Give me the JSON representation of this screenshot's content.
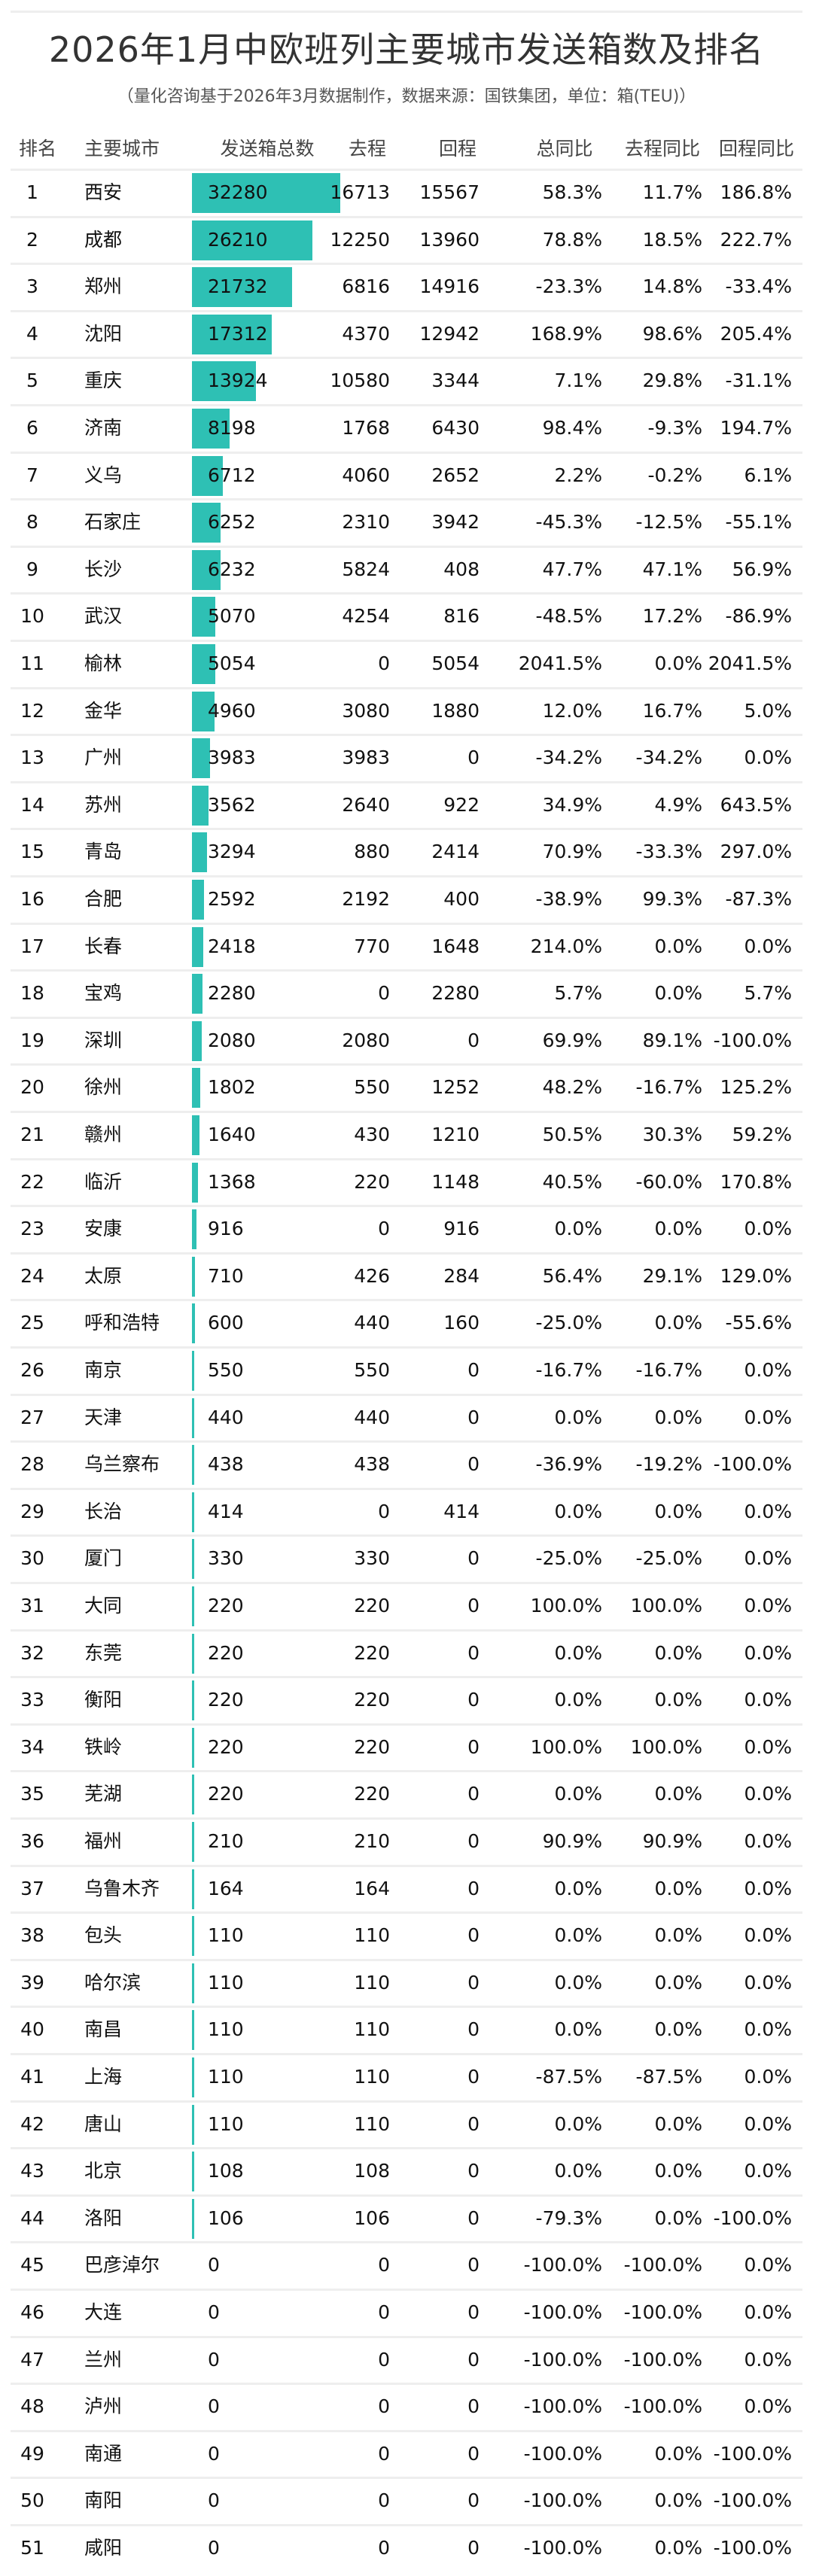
{
  "title": "2026年1月中欧班列主要城市发送箱数及排名",
  "subtitle": "（量化咨询基于2026年3月数据制作，数据来源：国铁集团，单位：箱(TEU)）",
  "chart_data": {
    "type": "table",
    "bar_color": "#2ec0b4",
    "columns": [
      "排名",
      "主要城市",
      "发送箱总数",
      "去程",
      "回程",
      "总同比",
      "去程同比",
      "回程同比"
    ],
    "bar_column": "发送箱总数",
    "rows": [
      [
        "1",
        "西安",
        "32280",
        "16713",
        "15567",
        "58.3%",
        "11.7%",
        "186.8%"
      ],
      [
        "2",
        "成都",
        "26210",
        "12250",
        "13960",
        "78.8%",
        "18.5%",
        "222.7%"
      ],
      [
        "3",
        "郑州",
        "21732",
        "6816",
        "14916",
        "-23.3%",
        "14.8%",
        "-33.4%"
      ],
      [
        "4",
        "沈阳",
        "17312",
        "4370",
        "12942",
        "168.9%",
        "98.6%",
        "205.4%"
      ],
      [
        "5",
        "重庆",
        "13924",
        "10580",
        "3344",
        "7.1%",
        "29.8%",
        "-31.1%"
      ],
      [
        "6",
        "济南",
        "8198",
        "1768",
        "6430",
        "98.4%",
        "-9.3%",
        "194.7%"
      ],
      [
        "7",
        "义乌",
        "6712",
        "4060",
        "2652",
        "2.2%",
        "-0.2%",
        "6.1%"
      ],
      [
        "8",
        "石家庄",
        "6252",
        "2310",
        "3942",
        "-45.3%",
        "-12.5%",
        "-55.1%"
      ],
      [
        "9",
        "长沙",
        "6232",
        "5824",
        "408",
        "47.7%",
        "47.1%",
        "56.9%"
      ],
      [
        "10",
        "武汉",
        "5070",
        "4254",
        "816",
        "-48.5%",
        "17.2%",
        "-86.9%"
      ],
      [
        "11",
        "榆林",
        "5054",
        "0",
        "5054",
        "2041.5%",
        "0.0%",
        "2041.5%"
      ],
      [
        "12",
        "金华",
        "4960",
        "3080",
        "1880",
        "12.0%",
        "16.7%",
        "5.0%"
      ],
      [
        "13",
        "广州",
        "3983",
        "3983",
        "0",
        "-34.2%",
        "-34.2%",
        "0.0%"
      ],
      [
        "14",
        "苏州",
        "3562",
        "2640",
        "922",
        "34.9%",
        "4.9%",
        "643.5%"
      ],
      [
        "15",
        "青岛",
        "3294",
        "880",
        "2414",
        "70.9%",
        "-33.3%",
        "297.0%"
      ],
      [
        "16",
        "合肥",
        "2592",
        "2192",
        "400",
        "-38.9%",
        "99.3%",
        "-87.3%"
      ],
      [
        "17",
        "长春",
        "2418",
        "770",
        "1648",
        "214.0%",
        "0.0%",
        "0.0%"
      ],
      [
        "18",
        "宝鸡",
        "2280",
        "0",
        "2280",
        "5.7%",
        "0.0%",
        "5.7%"
      ],
      [
        "19",
        "深圳",
        "2080",
        "2080",
        "0",
        "69.9%",
        "89.1%",
        "-100.0%"
      ],
      [
        "20",
        "徐州",
        "1802",
        "550",
        "1252",
        "48.2%",
        "-16.7%",
        "125.2%"
      ],
      [
        "21",
        "赣州",
        "1640",
        "430",
        "1210",
        "50.5%",
        "30.3%",
        "59.2%"
      ],
      [
        "22",
        "临沂",
        "1368",
        "220",
        "1148",
        "40.5%",
        "-60.0%",
        "170.8%"
      ],
      [
        "23",
        "安康",
        "916",
        "0",
        "916",
        "0.0%",
        "0.0%",
        "0.0%"
      ],
      [
        "24",
        "太原",
        "710",
        "426",
        "284",
        "56.4%",
        "29.1%",
        "129.0%"
      ],
      [
        "25",
        "呼和浩特",
        "600",
        "440",
        "160",
        "-25.0%",
        "0.0%",
        "-55.6%"
      ],
      [
        "26",
        "南京",
        "550",
        "550",
        "0",
        "-16.7%",
        "-16.7%",
        "0.0%"
      ],
      [
        "27",
        "天津",
        "440",
        "440",
        "0",
        "0.0%",
        "0.0%",
        "0.0%"
      ],
      [
        "28",
        "乌兰察布",
        "438",
        "438",
        "0",
        "-36.9%",
        "-19.2%",
        "-100.0%"
      ],
      [
        "29",
        "长治",
        "414",
        "0",
        "414",
        "0.0%",
        "0.0%",
        "0.0%"
      ],
      [
        "30",
        "厦门",
        "330",
        "330",
        "0",
        "-25.0%",
        "-25.0%",
        "0.0%"
      ],
      [
        "31",
        "大同",
        "220",
        "220",
        "0",
        "100.0%",
        "100.0%",
        "0.0%"
      ],
      [
        "32",
        "东莞",
        "220",
        "220",
        "0",
        "0.0%",
        "0.0%",
        "0.0%"
      ],
      [
        "33",
        "衡阳",
        "220",
        "220",
        "0",
        "0.0%",
        "0.0%",
        "0.0%"
      ],
      [
        "34",
        "铁岭",
        "220",
        "220",
        "0",
        "100.0%",
        "100.0%",
        "0.0%"
      ],
      [
        "35",
        "芜湖",
        "220",
        "220",
        "0",
        "0.0%",
        "0.0%",
        "0.0%"
      ],
      [
        "36",
        "福州",
        "210",
        "210",
        "0",
        "90.9%",
        "90.9%",
        "0.0%"
      ],
      [
        "37",
        "乌鲁木齐",
        "164",
        "164",
        "0",
        "0.0%",
        "0.0%",
        "0.0%"
      ],
      [
        "38",
        "包头",
        "110",
        "110",
        "0",
        "0.0%",
        "0.0%",
        "0.0%"
      ],
      [
        "39",
        "哈尔滨",
        "110",
        "110",
        "0",
        "0.0%",
        "0.0%",
        "0.0%"
      ],
      [
        "40",
        "南昌",
        "110",
        "110",
        "0",
        "0.0%",
        "0.0%",
        "0.0%"
      ],
      [
        "41",
        "上海",
        "110",
        "110",
        "0",
        "-87.5%",
        "-87.5%",
        "0.0%"
      ],
      [
        "42",
        "唐山",
        "110",
        "110",
        "0",
        "0.0%",
        "0.0%",
        "0.0%"
      ],
      [
        "43",
        "北京",
        "108",
        "108",
        "0",
        "0.0%",
        "0.0%",
        "0.0%"
      ],
      [
        "44",
        "洛阳",
        "106",
        "106",
        "0",
        "-79.3%",
        "0.0%",
        "-100.0%"
      ],
      [
        "45",
        "巴彦淖尔",
        "0",
        "0",
        "0",
        "-100.0%",
        "-100.0%",
        "0.0%"
      ],
      [
        "46",
        "大连",
        "0",
        "0",
        "0",
        "-100.0%",
        "-100.0%",
        "0.0%"
      ],
      [
        "47",
        "兰州",
        "0",
        "0",
        "0",
        "-100.0%",
        "-100.0%",
        "0.0%"
      ],
      [
        "48",
        "泸州",
        "0",
        "0",
        "0",
        "-100.0%",
        "-100.0%",
        "0.0%"
      ],
      [
        "49",
        "南通",
        "0",
        "0",
        "0",
        "-100.0%",
        "0.0%",
        "-100.0%"
      ],
      [
        "50",
        "南阳",
        "0",
        "0",
        "0",
        "-100.0%",
        "0.0%",
        "-100.0%"
      ],
      [
        "51",
        "咸阳",
        "0",
        "0",
        "0",
        "-100.0%",
        "0.0%",
        "-100.0%"
      ]
    ]
  }
}
